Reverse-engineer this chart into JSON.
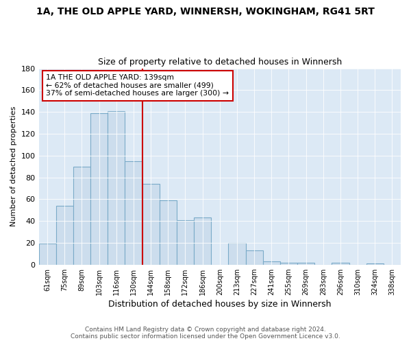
{
  "title": "1A, THE OLD APPLE YARD, WINNERSH, WOKINGHAM, RG41 5RT",
  "subtitle": "Size of property relative to detached houses in Winnersh",
  "xlabel": "Distribution of detached houses by size in Winnersh",
  "ylabel": "Number of detached properties",
  "categories": [
    "61sqm",
    "75sqm",
    "89sqm",
    "103sqm",
    "116sqm",
    "130sqm",
    "144sqm",
    "158sqm",
    "172sqm",
    "186sqm",
    "200sqm",
    "213sqm",
    "227sqm",
    "241sqm",
    "255sqm",
    "269sqm",
    "283sqm",
    "296sqm",
    "310sqm",
    "324sqm",
    "338sqm"
  ],
  "values": [
    19,
    54,
    90,
    139,
    141,
    95,
    74,
    59,
    41,
    43,
    0,
    20,
    13,
    3,
    2,
    2,
    0,
    2,
    0,
    1,
    0
  ],
  "bar_color": "#ccdded",
  "bar_edge_color": "#7aaac8",
  "vline_x_index": 6,
  "vline_color": "#cc0000",
  "annotation_text": "1A THE OLD APPLE YARD: 139sqm\n← 62% of detached houses are smaller (499)\n37% of semi-detached houses are larger (300) →",
  "annotation_box_color": "#ffffff",
  "annotation_box_edge": "#cc0000",
  "ylim": [
    0,
    180
  ],
  "yticks": [
    0,
    20,
    40,
    60,
    80,
    100,
    120,
    140,
    160,
    180
  ],
  "footer_line1": "Contains HM Land Registry data © Crown copyright and database right 2024.",
  "footer_line2": "Contains public sector information licensed under the Open Government Licence v3.0.",
  "fig_bg_color": "#ffffff",
  "plot_bg_color": "#dce9f5"
}
